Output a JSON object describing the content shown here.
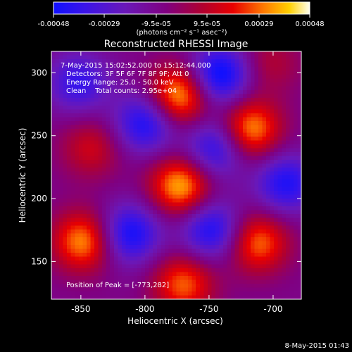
{
  "chart_data": {
    "type": "heatmap",
    "title": "Reconstructed RHESSI Image",
    "xlabel": "Heliocentric X (arcsec)",
    "ylabel": "Heliocentric Y (arcsec)",
    "xlim": [
      -873,
      -678
    ],
    "ylim": [
      120,
      317
    ],
    "x_ticks": [
      -850,
      -800,
      -750,
      -700
    ],
    "y_ticks": [
      150,
      200,
      250,
      300
    ],
    "colorbar": {
      "unit_label": "(photons cm⁻² s⁻¹ asec⁻²)",
      "min": -0.00048,
      "max": 0.00048,
      "tick_values": [
        -0.00048,
        -0.00029,
        -9.5e-05,
        9.5e-05,
        0.00029,
        0.00048
      ],
      "tick_labels": [
        "-0.00048",
        "-0.00029",
        "-9.5e-05",
        "9.5e-05",
        "0.00029",
        "0.00048"
      ]
    },
    "info_lines": [
      "7-May-2015 15:02:52.000 to 15:12:44.000",
      "Detectors: 3F 5F 6F 7F 8F 9F; Att 0",
      "Energy Range: 25.0 - 50.0 keV",
      "Clean    Total counts: 2.95e+04"
    ],
    "peak_label": "Position of Peak = [-773,282]",
    "footer_date": "8-May-2015 01:43",
    "sources": [
      {
        "x": -773,
        "y": 282,
        "value": 0.00048
      },
      {
        "x": -772,
        "y": 210,
        "value": 0.00046
      },
      {
        "x": -718,
        "y": 255,
        "value": 0.00044
      },
      {
        "x": -848,
        "y": 166,
        "value": 0.00042
      },
      {
        "x": -712,
        "y": 165,
        "value": 0.00038
      },
      {
        "x": -770,
        "y": 132,
        "value": 0.00036
      },
      {
        "x": -842,
        "y": 240,
        "value": 0.00022
      },
      {
        "x": -702,
        "y": 308,
        "value": 0.00016
      }
    ],
    "sinks": [
      {
        "x": -742,
        "y": 298,
        "value": -0.00046
      },
      {
        "x": -800,
        "y": 260,
        "value": -0.00038
      },
      {
        "x": -745,
        "y": 240,
        "value": -0.00036
      },
      {
        "x": -812,
        "y": 172,
        "value": -0.0004
      },
      {
        "x": -748,
        "y": 175,
        "value": -0.00038
      },
      {
        "x": -852,
        "y": 292,
        "value": -0.0003
      },
      {
        "x": -690,
        "y": 212,
        "value": -0.00036
      }
    ]
  }
}
